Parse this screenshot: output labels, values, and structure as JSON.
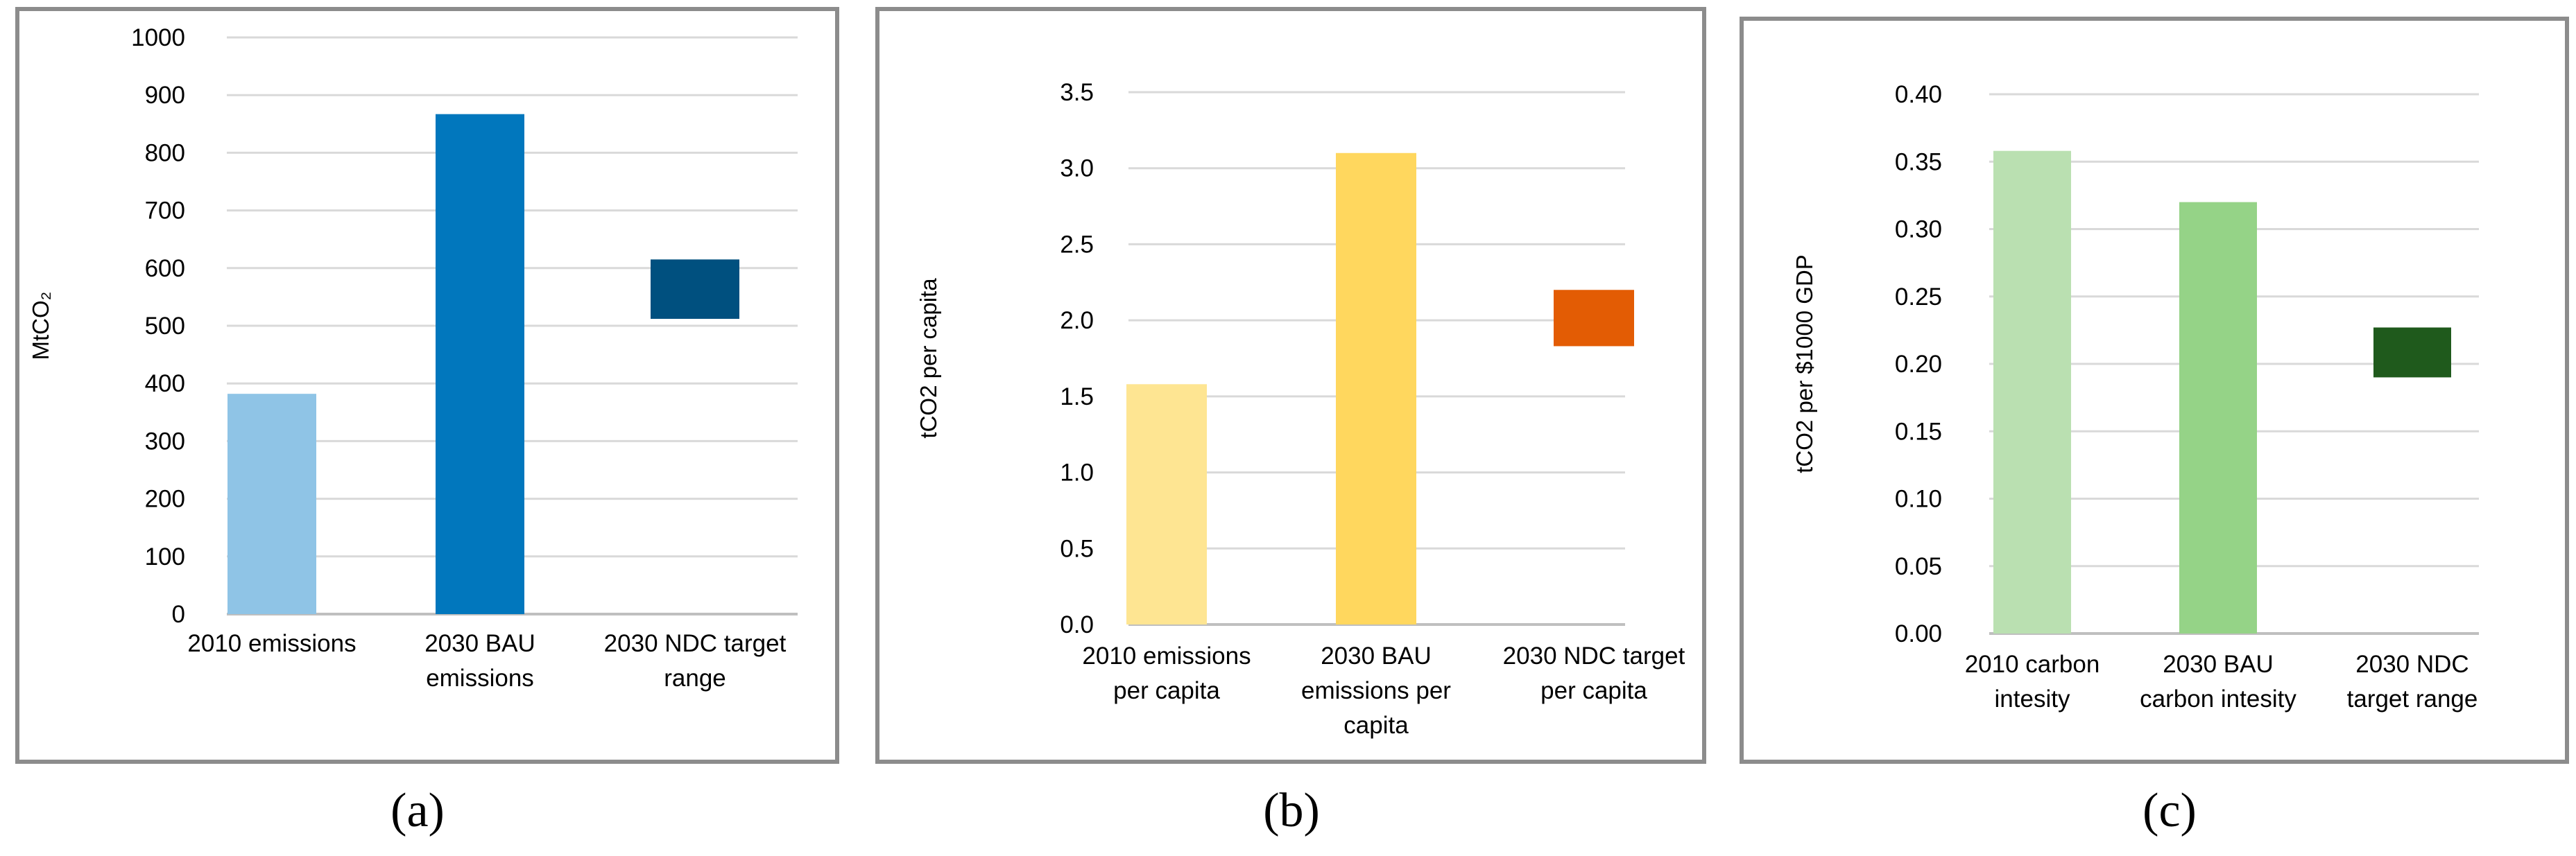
{
  "chart_data": [
    {
      "type": "bar",
      "panel_label": "(a)",
      "ylabel": "MtCO₂",
      "ylim": [
        0,
        1000
      ],
      "ytick_step": 100,
      "ytick_decimals": 0,
      "categories": [
        [
          "2010 emissions"
        ],
        [
          "2030 BAU",
          "emissions"
        ],
        [
          "2030 NDC target",
          "range"
        ]
      ],
      "bars": [
        {
          "low": 0,
          "high": 382,
          "color": "#8fc4e6"
        },
        {
          "low": 0,
          "high": 867,
          "color": "#0177bd"
        },
        {
          "low": 512,
          "high": 615,
          "color": "#00507f"
        }
      ]
    },
    {
      "type": "bar",
      "panel_label": "(b)",
      "ylabel": "tCO2 per capita",
      "ylim": [
        0,
        3.5
      ],
      "ytick_step": 0.5,
      "ytick_decimals": 1,
      "categories": [
        [
          "2010 emissions",
          "per capita"
        ],
        [
          "2030 BAU",
          "emissions per",
          "capita"
        ],
        [
          "2030 NDC target",
          "per capita"
        ]
      ],
      "bars": [
        {
          "low": 0,
          "high": 1.58,
          "color": "#fee592"
        },
        {
          "low": 0,
          "high": 3.1,
          "color": "#ffd75e"
        },
        {
          "low": 1.83,
          "high": 2.2,
          "color": "#e35c04"
        }
      ]
    },
    {
      "type": "bar",
      "panel_label": "(c)",
      "ylabel": "tCO2 per $1000 GDP",
      "ylim": [
        0,
        0.4
      ],
      "ytick_step": 0.05,
      "ytick_decimals": 2,
      "categories": [
        [
          "2010 carbon",
          "intesity"
        ],
        [
          "2030 BAU",
          "carbon intesity"
        ],
        [
          "2030 NDC",
          "target range"
        ]
      ],
      "bars": [
        {
          "low": 0,
          "high": 0.358,
          "color": "#bae0b1"
        },
        {
          "low": 0,
          "high": 0.32,
          "color": "#95d387"
        },
        {
          "low": 0.19,
          "high": 0.227,
          "color": "#1f5a1c"
        }
      ]
    }
  ]
}
